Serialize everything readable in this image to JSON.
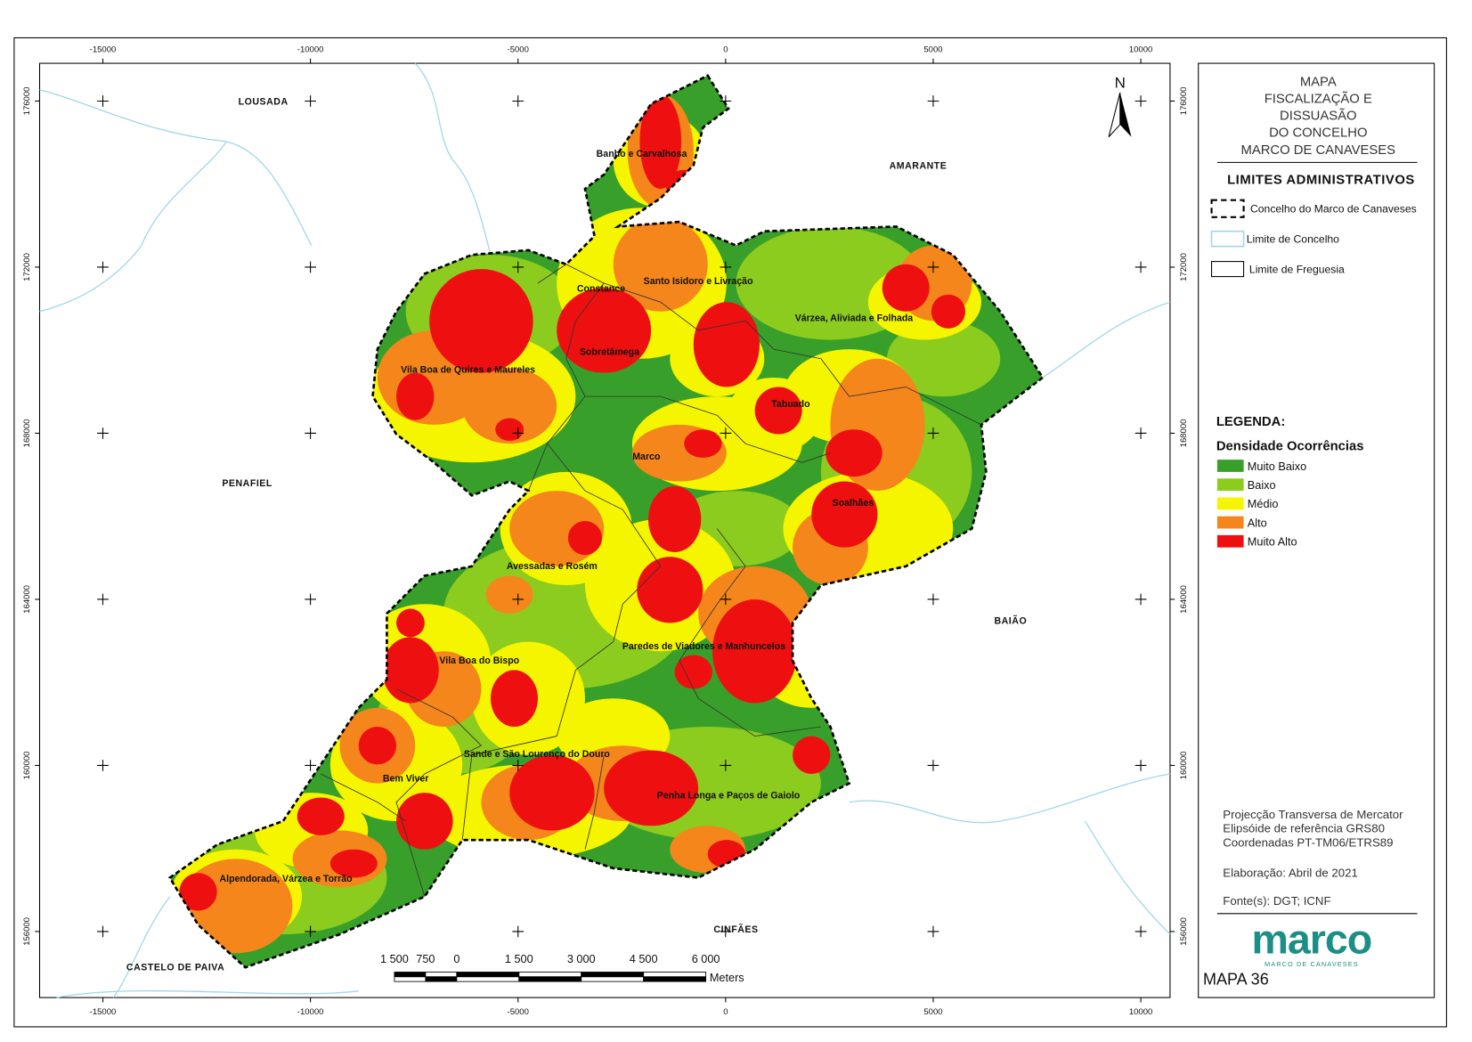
{
  "map": {
    "x_ticks": [
      -15000,
      -10000,
      -5000,
      0,
      5000,
      10000
    ],
    "y_ticks": [
      176000,
      172000,
      168000,
      164000,
      160000,
      156000
    ],
    "north": "N",
    "neighbors": [
      "LOUSADA",
      "AMARANTE",
      "PENAFIEL",
      "BAIÃO",
      "CINFÃES",
      "CASTELO DE PAIVA"
    ],
    "parishes": [
      "Banho e Carvalhosa",
      "Constance",
      "Santo Isidoro e Livração",
      "Várzea, Aliviada e Folhada",
      "Sobretâmega",
      "Vila Boa de Quires e Maureles",
      "Tabuado",
      "Marco",
      "Soalhães",
      "Avessadas e Rosém",
      "Paredes de Viadores e Manhuncelos",
      "Vila Boa do Bispo",
      "Sande e São Lourenço do Douro",
      "Bem Viver",
      "Penha Longa e Paços de Gaiolo",
      "Alpendorada, Várzea e Torrão"
    ],
    "scale_bar": {
      "labels": [
        "1 500",
        "750",
        "0",
        "1 500",
        "3 000",
        "4 500",
        "6 000"
      ],
      "unit": "Meters"
    }
  },
  "panel": {
    "title": [
      "MAPA",
      "FISCALIZAÇÃO E",
      "DISSUASÃO",
      "DO CONCELHO",
      "MARCO DE CANAVESES"
    ],
    "limits_title": "LIMITES ADMINISTRATIVOS",
    "limits": [
      "Concelho do Marco de Canaveses",
      "Limite de Concelho",
      "Limite de Freguesia"
    ],
    "legend_title": "LEGENDA:",
    "density_title": "Densidade Ocorrências",
    "classes": [
      {
        "label": "Muito Baixo",
        "color": "#38a02a"
      },
      {
        "label": "Baixo",
        "color": "#8ccc1e"
      },
      {
        "label": "Médio",
        "color": "#f5f500"
      },
      {
        "label": "Alto",
        "color": "#f5861c"
      },
      {
        "label": "Muito Alto",
        "color": "#ee1010"
      }
    ],
    "projection": [
      "Projecção Transversa de Mercator",
      "Elipsóide de referência GRS80",
      "Coordenadas PT-TM06/ETRS89"
    ],
    "date": "Elaboração: Abril de 2021",
    "sources": "Fonte(s): DGT; ICNF",
    "logo": "marco",
    "logo_sub": "MARCO DE CANAVESES",
    "map_number": "MAPA 36"
  }
}
